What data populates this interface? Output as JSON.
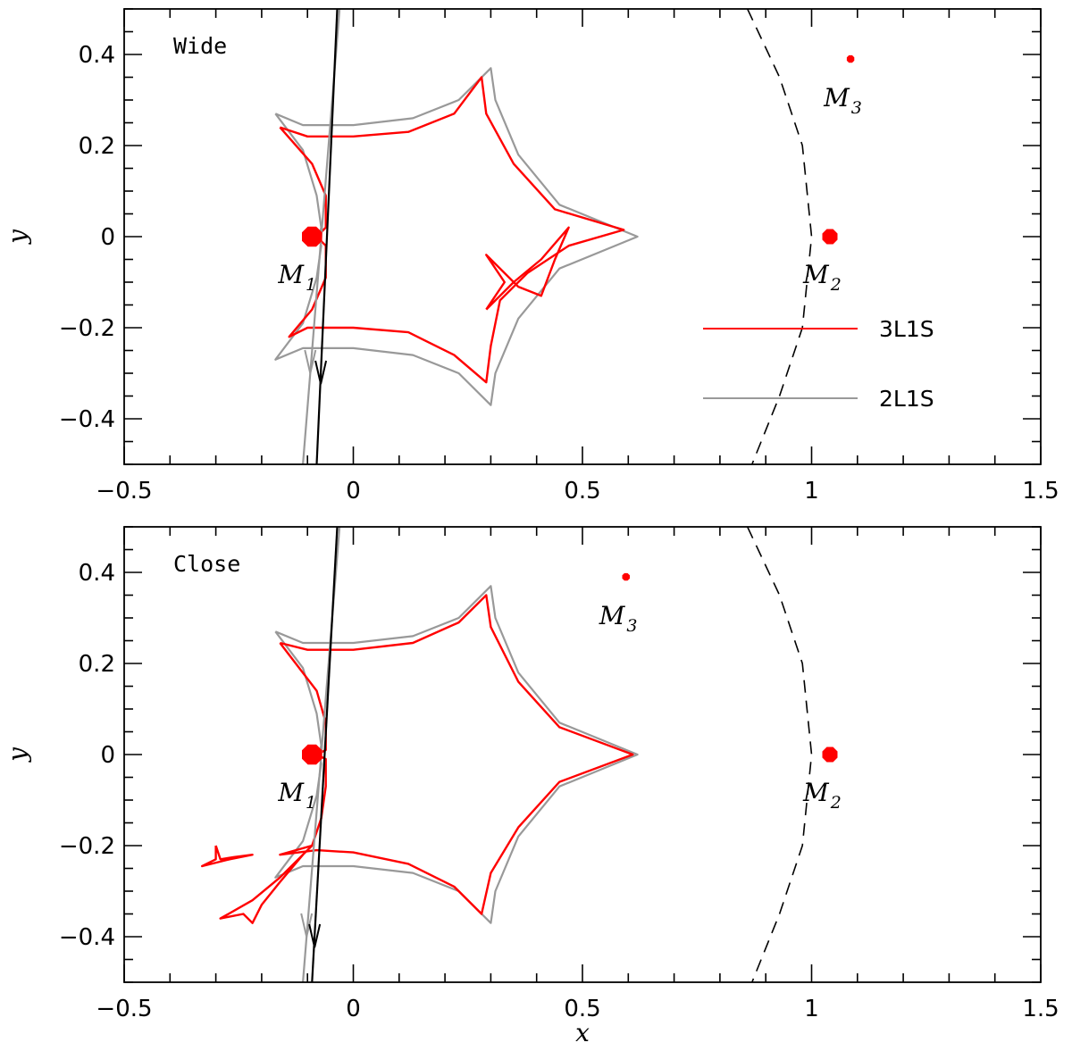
{
  "chart_data": [
    {
      "type": "line",
      "panel": "top",
      "title": "Wide",
      "xlabel": "",
      "ylabel": "y",
      "xlim": [
        -0.5,
        1.5
      ],
      "ylim": [
        -0.5,
        0.5
      ],
      "xticks": [
        -0.5,
        0,
        0.5,
        1,
        1.5
      ],
      "xtick_labels": [
        "−0.5",
        "0",
        "0.5",
        "1",
        "1.5"
      ],
      "yticks": [
        -0.4,
        -0.2,
        0,
        0.2,
        0.4
      ],
      "ytick_labels": [
        "−0.4",
        "−0.2",
        "0",
        "0.2",
        "0.4"
      ],
      "masses": [
        {
          "name": "M",
          "sub": "1",
          "x": -0.09,
          "y": 0.0,
          "radius": 0.024,
          "color": "#ff0000"
        },
        {
          "name": "M",
          "sub": "2",
          "x": 1.04,
          "y": 0.0,
          "radius": 0.018,
          "color": "#ff0000"
        },
        {
          "name": "M",
          "sub": "3",
          "x": 1.085,
          "y": 0.39,
          "radius": 0.009,
          "color": "#ff0000"
        }
      ],
      "legend": [
        {
          "label": "3L1S",
          "color": "#ff0000"
        },
        {
          "label": "2L1S",
          "color": "#999999"
        }
      ],
      "series": [
        {
          "name": "2L1S caustic",
          "color": "#999999",
          "points": [
            [
              -0.17,
              0.27
            ],
            [
              -0.11,
              0.245
            ],
            [
              0.0,
              0.245
            ],
            [
              0.13,
              0.26
            ],
            [
              0.23,
              0.3
            ],
            [
              0.3,
              0.37
            ],
            [
              0.31,
              0.3
            ],
            [
              0.36,
              0.18
            ],
            [
              0.45,
              0.07
            ],
            [
              0.62,
              0.0
            ],
            [
              0.45,
              -0.07
            ],
            [
              0.36,
              -0.18
            ],
            [
              0.31,
              -0.3
            ],
            [
              0.3,
              -0.37
            ],
            [
              0.23,
              -0.3
            ],
            [
              0.13,
              -0.26
            ],
            [
              0.0,
              -0.245
            ],
            [
              -0.11,
              -0.245
            ],
            [
              -0.17,
              -0.27
            ],
            [
              -0.11,
              -0.19
            ],
            [
              -0.08,
              -0.09
            ],
            [
              -0.07,
              -0.02
            ],
            [
              -0.075,
              0.0
            ],
            [
              -0.07,
              0.02
            ],
            [
              -0.08,
              0.09
            ],
            [
              -0.11,
              0.19
            ],
            [
              -0.17,
              0.27
            ]
          ]
        },
        {
          "name": "3L1S caustic",
          "color": "#ff0000",
          "points": [
            [
              -0.16,
              0.24
            ],
            [
              -0.1,
              0.22
            ],
            [
              0.0,
              0.22
            ],
            [
              0.12,
              0.23
            ],
            [
              0.22,
              0.27
            ],
            [
              0.28,
              0.35
            ],
            [
              0.29,
              0.27
            ],
            [
              0.35,
              0.16
            ],
            [
              0.44,
              0.06
            ],
            [
              0.59,
              0.015
            ],
            [
              0.47,
              -0.02
            ],
            [
              0.38,
              -0.08
            ],
            [
              0.32,
              -0.14
            ],
            [
              0.3,
              -0.24
            ],
            [
              0.29,
              -0.32
            ],
            [
              0.22,
              -0.26
            ],
            [
              0.12,
              -0.21
            ],
            [
              0.0,
              -0.2
            ],
            [
              -0.1,
              -0.2
            ],
            [
              -0.14,
              -0.22
            ],
            [
              -0.09,
              -0.16
            ],
            [
              -0.06,
              -0.09
            ],
            [
              -0.06,
              -0.02
            ],
            [
              -0.08,
              0.0
            ],
            [
              -0.06,
              0.02
            ],
            [
              -0.06,
              0.09
            ],
            [
              -0.09,
              0.16
            ],
            [
              -0.16,
              0.24
            ]
          ]
        },
        {
          "name": "3L1S inner caustic",
          "color": "#ff0000",
          "points": [
            [
              0.29,
              -0.16
            ],
            [
              0.35,
              -0.1
            ],
            [
              0.41,
              -0.05
            ],
            [
              0.47,
              0.02
            ],
            [
              0.44,
              -0.05
            ],
            [
              0.41,
              -0.13
            ],
            [
              0.36,
              -0.11
            ],
            [
              0.29,
              -0.04
            ],
            [
              0.33,
              -0.1
            ],
            [
              0.29,
              -0.16
            ]
          ]
        },
        {
          "name": "2L1S trajectory",
          "color": "#999999",
          "points": [
            [
              -0.11,
              -0.5
            ],
            [
              -0.03,
              0.5
            ]
          ]
        },
        {
          "name": "3L1S trajectory",
          "color": "#000000",
          "points": [
            [
              -0.08,
              -0.5
            ],
            [
              -0.035,
              0.5
            ]
          ]
        },
        {
          "name": "dashed circle",
          "color": "#000000",
          "style": "dashed",
          "points": [
            [
              0.86,
              0.5
            ],
            [
              0.93,
              0.35
            ],
            [
              0.98,
              0.2
            ],
            [
              1.0,
              0.0
            ],
            [
              0.98,
              -0.2
            ],
            [
              0.93,
              -0.35
            ],
            [
              0.87,
              -0.5
            ]
          ]
        }
      ]
    },
    {
      "type": "line",
      "panel": "bottom",
      "title": "Close",
      "xlabel": "x",
      "ylabel": "y",
      "xlim": [
        -0.5,
        1.5
      ],
      "ylim": [
        -0.5,
        0.5
      ],
      "xticks": [
        -0.5,
        0,
        0.5,
        1,
        1.5
      ],
      "xtick_labels": [
        "−0.5",
        "0",
        "0.5",
        "1",
        "1.5"
      ],
      "yticks": [
        -0.4,
        -0.2,
        0,
        0.2,
        0.4
      ],
      "ytick_labels": [
        "−0.4",
        "−0.2",
        "0",
        "0.2",
        "0.4"
      ],
      "masses": [
        {
          "name": "M",
          "sub": "1",
          "x": -0.09,
          "y": 0.0,
          "radius": 0.024,
          "color": "#ff0000"
        },
        {
          "name": "M",
          "sub": "2",
          "x": 1.04,
          "y": 0.0,
          "radius": 0.018,
          "color": "#ff0000"
        },
        {
          "name": "M",
          "sub": "3",
          "x": 0.595,
          "y": 0.39,
          "radius": 0.009,
          "color": "#ff0000"
        }
      ],
      "series": [
        {
          "name": "2L1S caustic",
          "color": "#999999",
          "points": [
            [
              -0.17,
              0.27
            ],
            [
              -0.11,
              0.245
            ],
            [
              0.0,
              0.245
            ],
            [
              0.13,
              0.26
            ],
            [
              0.23,
              0.3
            ],
            [
              0.3,
              0.37
            ],
            [
              0.31,
              0.3
            ],
            [
              0.36,
              0.18
            ],
            [
              0.45,
              0.07
            ],
            [
              0.62,
              0.0
            ],
            [
              0.45,
              -0.07
            ],
            [
              0.36,
              -0.18
            ],
            [
              0.31,
              -0.3
            ],
            [
              0.3,
              -0.37
            ],
            [
              0.23,
              -0.3
            ],
            [
              0.13,
              -0.26
            ],
            [
              0.0,
              -0.245
            ],
            [
              -0.11,
              -0.245
            ],
            [
              -0.17,
              -0.27
            ],
            [
              -0.11,
              -0.19
            ],
            [
              -0.08,
              -0.09
            ],
            [
              -0.07,
              -0.02
            ],
            [
              -0.075,
              0.0
            ],
            [
              -0.07,
              0.02
            ],
            [
              -0.08,
              0.09
            ],
            [
              -0.11,
              0.19
            ],
            [
              -0.17,
              0.27
            ]
          ]
        },
        {
          "name": "3L1S caustic",
          "color": "#ff0000",
          "points": [
            [
              -0.16,
              0.245
            ],
            [
              -0.1,
              0.23
            ],
            [
              0.0,
              0.23
            ],
            [
              0.13,
              0.245
            ],
            [
              0.23,
              0.29
            ],
            [
              0.29,
              0.35
            ],
            [
              0.3,
              0.28
            ],
            [
              0.36,
              0.16
            ],
            [
              0.45,
              0.06
            ],
            [
              0.61,
              0.0
            ],
            [
              0.45,
              -0.06
            ],
            [
              0.36,
              -0.16
            ],
            [
              0.3,
              -0.26
            ],
            [
              0.28,
              -0.35
            ],
            [
              0.22,
              -0.29
            ],
            [
              0.12,
              -0.24
            ],
            [
              0.0,
              -0.215
            ],
            [
              -0.08,
              -0.21
            ],
            [
              -0.16,
              -0.22
            ],
            [
              -0.09,
              -0.2
            ],
            [
              -0.07,
              -0.14
            ],
            [
              -0.06,
              -0.07
            ],
            [
              -0.06,
              -0.01
            ],
            [
              -0.08,
              0.0
            ],
            [
              -0.06,
              0.01
            ],
            [
              -0.06,
              0.07
            ],
            [
              -0.08,
              0.14
            ],
            [
              -0.16,
              0.245
            ]
          ]
        },
        {
          "name": "3L1S small caustic A",
          "color": "#ff0000",
          "points": [
            [
              -0.3,
              -0.2
            ],
            [
              -0.29,
              -0.23
            ],
            [
              -0.26,
              -0.225
            ],
            [
              -0.22,
              -0.22
            ],
            [
              -0.27,
              -0.23
            ],
            [
              -0.33,
              -0.245
            ],
            [
              -0.3,
              -0.23
            ],
            [
              -0.3,
              -0.2
            ]
          ]
        },
        {
          "name": "3L1S small caustic B",
          "color": "#ff0000",
          "points": [
            [
              -0.09,
              -0.2
            ],
            [
              -0.16,
              -0.27
            ],
            [
              -0.22,
              -0.32
            ],
            [
              -0.29,
              -0.36
            ],
            [
              -0.24,
              -0.35
            ],
            [
              -0.22,
              -0.37
            ],
            [
              -0.2,
              -0.33
            ],
            [
              -0.16,
              -0.28
            ],
            [
              -0.11,
              -0.22
            ],
            [
              -0.09,
              -0.2
            ]
          ]
        },
        {
          "name": "2L1S trajectory",
          "color": "#999999",
          "points": [
            [
              -0.11,
              -0.5
            ],
            [
              -0.03,
              0.5
            ]
          ]
        },
        {
          "name": "3L1S trajectory",
          "color": "#000000",
          "points": [
            [
              -0.09,
              -0.5
            ],
            [
              -0.035,
              0.5
            ]
          ]
        },
        {
          "name": "dashed circle",
          "color": "#000000",
          "style": "dashed",
          "points": [
            [
              0.86,
              0.5
            ],
            [
              0.93,
              0.35
            ],
            [
              0.98,
              0.2
            ],
            [
              1.0,
              0.0
            ],
            [
              0.98,
              -0.2
            ],
            [
              0.93,
              -0.35
            ],
            [
              0.87,
              -0.5
            ]
          ]
        }
      ]
    }
  ]
}
